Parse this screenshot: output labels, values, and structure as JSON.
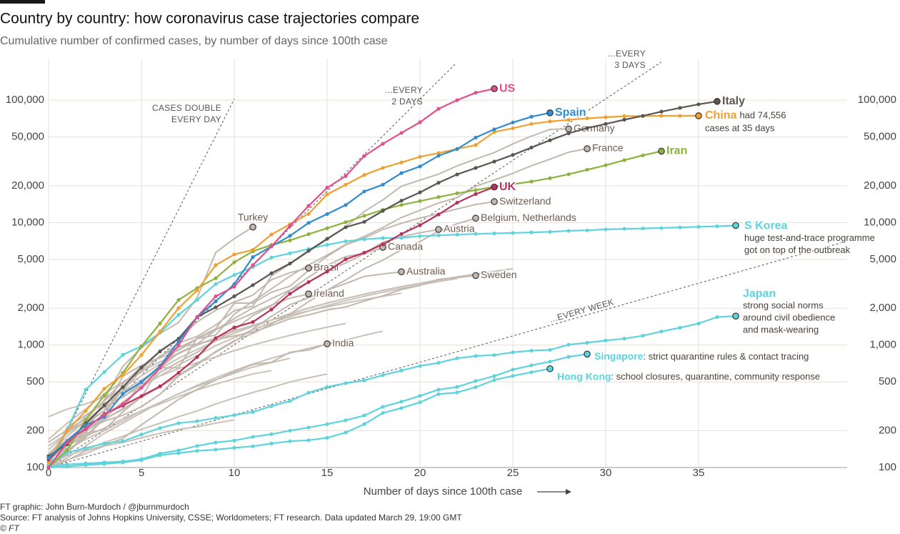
{
  "chart_data": {
    "type": "line",
    "title": "Country by country: how coronavirus case trajectories compare",
    "subtitle": "Cumulative number of confirmed cases, by number of days since 100th case",
    "x_label": "Number of days since 100th case",
    "credits": [
      "FT graphic: John Burn-Murdoch / @jburnmurdoch",
      "Source: FT analysis of Johns Hopkins University, CSSE; Worldometers; FT research. Data updated March 29, 19:00 GMT",
      "© FT"
    ],
    "log_y": true,
    "grid": true,
    "xlim": [
      0,
      43
    ],
    "xticks": [
      0,
      5,
      10,
      15,
      20,
      25,
      30,
      35
    ],
    "ylim": [
      100,
      220000
    ],
    "yticks": [
      100,
      200,
      500,
      {
        "value": 1000,
        "label": "1,000"
      },
      {
        "value": 2000,
        "label": "2,000"
      },
      {
        "value": 5000,
        "label": "5,000"
      },
      {
        "value": 10000,
        "label": "10,000"
      },
      {
        "value": 20000,
        "label": "20,000"
      },
      {
        "value": 50000,
        "label": "50,000"
      },
      {
        "value": 100000,
        "label": "100,000"
      }
    ],
    "guides": [
      {
        "label": [
          "CASES DOUBLE",
          "EVERY DAY"
        ],
        "x": [
          0,
          10
        ],
        "values": [
          100,
          102400
        ]
      },
      {
        "label": [
          "...EVERY",
          "2 DAYS"
        ],
        "x": [
          0,
          21.9
        ],
        "values": [
          100,
          197000
        ]
      },
      {
        "label": [
          "...EVERY",
          "3 DAYS"
        ],
        "x": [
          0,
          33
        ],
        "values": [
          100,
          204800
        ]
      },
      {
        "label": [
          "...EVERY WEEK"
        ],
        "x": [
          0,
          43
        ],
        "values": [
          100,
          7060
        ]
      }
    ],
    "series": [
      {
        "color": "#c9c0b7",
        "values": [
          260,
          300,
          330,
          380,
          420,
          480,
          560,
          640,
          720,
          800,
          900,
          1000,
          1100,
          1200,
          1300,
          1400,
          1500
        ]
      },
      {
        "color": "#c9c0b7",
        "values": [
          150,
          190,
          240,
          310,
          380,
          460,
          560,
          690,
          820,
          990,
          1150,
          1330,
          1520,
          1700,
          1900,
          2100,
          2300,
          2500,
          2700,
          2900,
          3100,
          3300,
          3500
        ]
      },
      {
        "color": "#c9c0b7",
        "values": [
          120,
          140,
          170,
          200,
          240,
          290,
          340,
          400,
          460,
          520,
          590,
          660,
          720,
          780
        ]
      },
      {
        "color": "#c9c0b7",
        "values": [
          110,
          125,
          140,
          160,
          180,
          205,
          230,
          260,
          290,
          330,
          370,
          410,
          450,
          500,
          540,
          580
        ]
      },
      {
        "color": "#c9c0b7",
        "values": [
          140,
          190,
          260,
          350,
          450,
          560,
          700,
          850,
          1000,
          1150,
          1300,
          1450,
          1600,
          1800,
          2000,
          2200,
          2400,
          2600,
          2800,
          3000,
          3200,
          3400,
          3600,
          3800
        ]
      },
      {
        "color": "#c9c0b7",
        "values": [
          105,
          115,
          130,
          150,
          160,
          175,
          190,
          205,
          215,
          230,
          245
        ]
      },
      {
        "color": "#c9c0b7",
        "values": [
          130,
          180,
          240,
          320,
          420,
          520,
          640,
          780,
          920,
          1080,
          1250,
          1420,
          1600,
          1800,
          2000,
          2200,
          2400,
          2600,
          2800,
          3000,
          3200,
          3400,
          3600,
          3800,
          4000,
          4200
        ]
      },
      {
        "color": "#c9c0b7",
        "values": [
          120,
          150,
          180,
          210,
          250,
          290,
          330,
          380,
          430,
          480,
          530,
          580,
          620
        ]
      },
      {
        "color": "#c9c0b7",
        "values": [
          100,
          120,
          150,
          190,
          230,
          280,
          340,
          400,
          470,
          540,
          620,
          700,
          780,
          860,
          940,
          1020,
          1100,
          1200,
          1300
        ]
      },
      {
        "color": "#c9c0b7",
        "values": [
          170,
          230,
          300,
          400,
          500,
          610,
          730,
          860,
          1000,
          1150,
          1300,
          1450,
          1600,
          1750,
          1900,
          2050,
          2200,
          2350,
          2500,
          2650
        ]
      },
      {
        "name": "Turkey",
        "color": "#c2b8ae",
        "values": [
          100,
          150,
          190,
          360,
          670,
          950,
          1240,
          1530,
          2430,
          5700,
          7400,
          9200
        ]
      },
      {
        "name": "Germany",
        "color": "#c2b8ae",
        "values": [
          130,
          159,
          196,
          262,
          482,
          670,
          799,
          1040,
          1176,
          1457,
          1908,
          2078,
          3675,
          4585,
          5795,
          7272,
          9257,
          12327,
          15320,
          19848,
          22213,
          24873,
          29056,
          32986,
          37323,
          43938,
          50871,
          57695,
          58247
        ]
      },
      {
        "name": "France",
        "color": "#c2b8ae",
        "values": [
          100,
          130,
          191,
          204,
          285,
          377,
          653,
          949,
          1126,
          1209,
          1784,
          2281,
          2876,
          3661,
          4499,
          5423,
          6633,
          7730,
          9134,
          10995,
          12612,
          14459,
          16018,
          19856,
          22304,
          25233,
          29155,
          32964,
          37575,
          40174
        ]
      },
      {
        "name": "Switzerland",
        "color": "#c2b8ae",
        "values": [
          100,
          214,
          268,
          337,
          374,
          491,
          652,
          652,
          1139,
          1359,
          2200,
          2200,
          2700,
          3028,
          4075,
          5294,
          6575,
          7474,
          8795,
          9877,
          10897,
          11811,
          12928,
          14076,
          14829
        ]
      },
      {
        "name": "Belgium, Netherlands",
        "color": "#c2b8ae",
        "values": [
          109,
          169,
          200,
          239,
          267,
          314,
          396,
          559,
          689,
          886,
          1087,
          1243,
          1486,
          1795,
          2257,
          2815,
          3401,
          4204,
          4937,
          6000,
          7000,
          8500,
          9800,
          10866
        ]
      },
      {
        "name": "Austria",
        "color": "#c2b8ae",
        "values": [
          104,
          131,
          182,
          246,
          302,
          504,
          655,
          860,
          1018,
          1332,
          1646,
          2013,
          2388,
          2814,
          3582,
          4474,
          5283,
          5588,
          6909,
          7657,
          8271,
          8788
        ]
      },
      {
        "name": "Canada",
        "color": "#c2b8ae",
        "values": [
          103,
          138,
          176,
          252,
          342,
          441,
          598,
          727,
          873,
          1087,
          1331,
          1739,
          2088,
          2790,
          3251,
          4042,
          4682,
          5576,
          6280
        ]
      },
      {
        "name": "Brazil",
        "color": "#c2b8ae",
        "values": [
          121,
          200,
          234,
          291,
          428,
          621,
          904,
          1128,
          1546,
          1924,
          2247,
          2554,
          3417,
          3904,
          4256
        ]
      },
      {
        "name": "Australia",
        "color": "#c2b8ae",
        "values": [
          112,
          156,
          197,
          249,
          298,
          375,
          454,
          565,
          709,
          875,
          1071,
          1352,
          1716,
          2136,
          2431,
          2810,
          3179,
          3635,
          3809,
          3966
        ]
      },
      {
        "name": "Ireland",
        "color": "#c2b8ae",
        "values": [
          129,
          169,
          223,
          292,
          557,
          683,
          785,
          906,
          1125,
          1329,
          1564,
          1819,
          2121,
          2415,
          2615
        ]
      },
      {
        "name": "Sweden",
        "color": "#c2b8ae",
        "values": [
          161,
          203,
          248,
          355,
          500,
          599,
          814,
          961,
          1022,
          1103,
          1190,
          1279,
          1439,
          1639,
          1763,
          1934,
          2046,
          2286,
          2526,
          2840,
          3069,
          3447,
          3550,
          3700
        ]
      },
      {
        "name": "India",
        "color": "#c2b8ae",
        "values": [
          100,
          114,
          137,
          151,
          173,
          223,
          283,
          360,
          434,
          519,
          606,
          694,
          724,
          873,
          909,
          1024
        ]
      },
      {
        "name": "Hong Kong",
        "color": "#5fd3dc",
        "note": [
          ": school closures, quarantine, community response"
        ],
        "values": [
          100,
          102,
          105,
          107,
          110,
          115,
          126,
          131,
          137,
          140,
          145,
          149,
          157,
          164,
          167,
          175,
          193,
          226,
          279,
          306,
          341,
          397,
          410,
          453,
          518,
          560,
          600,
          641
        ]
      },
      {
        "name": "Singapore",
        "color": "#5fd3dc",
        "note": [
          ": strict quarantine rules & contact tracing"
        ],
        "values": [
          102,
          106,
          108,
          110,
          112,
          117,
          130,
          138,
          150,
          160,
          166,
          178,
          187,
          200,
          212,
          226,
          243,
          266,
          313,
          345,
          385,
          432,
          455,
          509,
          558,
          631,
          683,
          732,
          802,
          844
        ]
      },
      {
        "name": "Japan",
        "color": "#5fd3dc",
        "note": [
          "strong social norms",
          "around civil obedience",
          "and mask-wearing"
        ],
        "values": [
          105,
          132,
          144,
          157,
          164,
          186,
          210,
          230,
          239,
          254,
          268,
          284,
          317,
          349,
          408,
          455,
          488,
          514,
          568,
          620,
          675,
          716,
          780,
          814,
          829,
          873,
          900,
          913,
          1007,
          1046,
          1089,
          1128,
          1193,
          1291,
          1387,
          1499,
          1693,
          1724
        ]
      },
      {
        "name": "S Korea",
        "color": "#5fd3dc",
        "note": [
          "huge test-and-trace programme",
          "got on top of the outbreak"
        ],
        "values": [
          104,
          204,
          433,
          602,
          833,
          977,
          1261,
          1766,
          2337,
          3150,
          3736,
          4335,
          5186,
          5621,
          6088,
          6593,
          7041,
          7313,
          7478,
          7513,
          7755,
          7869,
          7979,
          8086,
          8162,
          8236,
          8320,
          8413,
          8565,
          8652,
          8799,
          8897,
          8961,
          9037,
          9137,
          9241,
          9332,
          9478
        ]
      },
      {
        "name": "Iran",
        "color": "#8db23e",
        "values": [
          100,
          139,
          245,
          388,
          593,
          978,
          1501,
          2336,
          2922,
          3513,
          4747,
          5823,
          6566,
          7161,
          8042,
          9000,
          10075,
          11364,
          12729,
          13938,
          14991,
          16169,
          17361,
          18407,
          19644,
          20610,
          21638,
          23049,
          24811,
          27017,
          29406,
          32332,
          35408,
          38309
        ]
      },
      {
        "name": "China",
        "color": "#f0a030",
        "note": [
          "had 74,556",
          "cases at 35 days"
        ],
        "values": [
          110,
          200,
          290,
          440,
          570,
          830,
          1290,
          2000,
          2800,
          4500,
          5500,
          6000,
          8000,
          9700,
          11800,
          17000,
          20400,
          24500,
          28000,
          31000,
          34500,
          37000,
          40000,
          43000,
          55000,
          59000,
          64000,
          67000,
          69000,
          71000,
          72500,
          74000,
          74200,
          74500,
          74500,
          74556
        ]
      },
      {
        "name": "UK",
        "color": "#b8305e",
        "values": [
          116,
          164,
          207,
          273,
          321,
          383,
          460,
          594,
          798,
          1140,
          1391,
          1543,
          1950,
          2626,
          3269,
          3983,
          5018,
          5683,
          6650,
          8077,
          9529,
          11658,
          14543,
          17089,
          19522
        ]
      },
      {
        "name": "Italy",
        "color": "#5a5550",
        "values": [
          124,
          155,
          229,
          322,
          453,
          655,
          888,
          1128,
          1694,
          2036,
          2502,
          3089,
          3858,
          4636,
          5883,
          7375,
          9172,
          10149,
          12462,
          15113,
          17660,
          21157,
          24747,
          27980,
          31506,
          35713,
          41035,
          47021,
          53578,
          59138,
          63927,
          69176,
          74386,
          80589,
          86498,
          92472,
          97689
        ]
      },
      {
        "name": "Spain",
        "color": "#2f8ccf",
        "values": [
          120,
          165,
          222,
          259,
          400,
          500,
          673,
          1073,
          1695,
          2277,
          3146,
          5232,
          6391,
          7798,
          9942,
          11748,
          13910,
          17963,
          20410,
          25374,
          28768,
          35136,
          39885,
          49515,
          57786,
          65719,
          73235,
          78797
        ]
      },
      {
        "name": "US",
        "color": "#e0508a",
        "values": [
          100,
          160,
          210,
          270,
          330,
          450,
          650,
          1000,
          1700,
          2500,
          3000,
          4500,
          6400,
          9400,
          13700,
          19300,
          24000,
          35000,
          44000,
          54000,
          66000,
          85000,
          100000,
          115000,
          124000
        ]
      }
    ]
  }
}
